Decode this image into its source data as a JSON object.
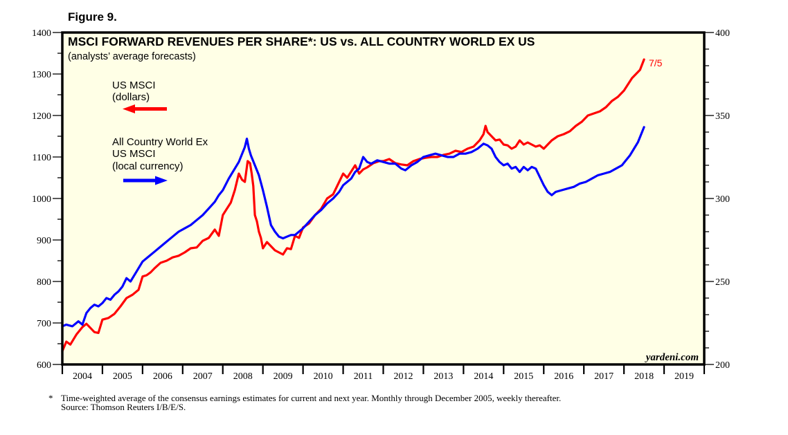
{
  "figure_label": "Figure 9.",
  "footnote": {
    "marker": "*",
    "text": "Time-weighted average of the consensus earnings estimates for current and next year. Monthly through December 2005, weekly thereafter.",
    "source": "Source: Thomson Reuters I/B/E/S."
  },
  "watermark": "yardeni.com",
  "chart_data": {
    "type": "line",
    "title": "MSCI FORWARD REVENUES PER SHARE*: US vs. ALL COUNTRY WORLD EX US",
    "subtitle": "(analysts’ average forecasts)",
    "xlabel": "",
    "x_tick_labels": [
      "2004",
      "2005",
      "2006",
      "2007",
      "2008",
      "2009",
      "2010",
      "2011",
      "2012",
      "2013",
      "2014",
      "2015",
      "2016",
      "2017",
      "2018",
      "2019"
    ],
    "xlim": [
      2004,
      2020
    ],
    "y_left": {
      "label": "",
      "lim": [
        600,
        1400
      ],
      "ticks": [
        600,
        700,
        800,
        900,
        1000,
        1100,
        1200,
        1300,
        1400
      ]
    },
    "y_right": {
      "label": "",
      "lim": [
        200,
        400
      ],
      "ticks": [
        200,
        250,
        300,
        350,
        400
      ]
    },
    "grid": false,
    "background": "#ffffe6",
    "end_annotation": "7/5",
    "legend": [
      {
        "line1": "US MSCI",
        "line2": "(dollars)",
        "line3": "",
        "arrow": "left",
        "color": "#ff0000"
      },
      {
        "line1": "All Country World Ex",
        "line2": "US MSCI",
        "line3": "(local currency)",
        "arrow": "right",
        "color": "#0000ff"
      }
    ],
    "series": [
      {
        "name": "US MSCI (dollars)",
        "axis": "left",
        "color": "#ff0000",
        "x": [
          2004.0,
          2004.1,
          2004.2,
          2004.35,
          2004.5,
          2004.6,
          2004.7,
          2004.8,
          2004.9,
          2005.0,
          2005.15,
          2005.3,
          2005.45,
          2005.6,
          2005.75,
          2005.9,
          2006.0,
          2006.1,
          2006.2,
          2006.3,
          2006.45,
          2006.6,
          2006.75,
          2006.9,
          2007.05,
          2007.2,
          2007.35,
          2007.5,
          2007.65,
          2007.8,
          2007.9,
          2008.0,
          2008.1,
          2008.2,
          2008.3,
          2008.4,
          2008.48,
          2008.55,
          2008.62,
          2008.68,
          2008.72,
          2008.76,
          2008.8,
          2008.85,
          2008.9,
          2008.95,
          2009.0,
          2009.1,
          2009.2,
          2009.3,
          2009.4,
          2009.5,
          2009.6,
          2009.7,
          2009.8,
          2009.9,
          2010.0,
          2010.15,
          2010.3,
          2010.45,
          2010.6,
          2010.75,
          2010.9,
          2011.0,
          2011.1,
          2011.2,
          2011.3,
          2011.4,
          2011.5,
          2011.6,
          2011.75,
          2011.9,
          2012.0,
          2012.15,
          2012.3,
          2012.45,
          2012.6,
          2012.75,
          2012.9,
          2013.05,
          2013.2,
          2013.35,
          2013.5,
          2013.65,
          2013.8,
          2013.95,
          2014.1,
          2014.25,
          2014.4,
          2014.5,
          2014.55,
          2014.6,
          2014.7,
          2014.8,
          2014.9,
          2015.0,
          2015.1,
          2015.2,
          2015.3,
          2015.4,
          2015.5,
          2015.6,
          2015.7,
          2015.8,
          2015.9,
          2016.0,
          2016.1,
          2016.2,
          2016.35,
          2016.5,
          2016.65,
          2016.8,
          2016.95,
          2017.1,
          2017.25,
          2017.4,
          2017.55,
          2017.7,
          2017.85,
          2018.0,
          2018.1,
          2018.2,
          2018.3,
          2018.4,
          2018.5
        ],
        "values": [
          632,
          655,
          648,
          672,
          690,
          698,
          688,
          678,
          676,
          708,
          712,
          722,
          740,
          760,
          768,
          780,
          812,
          815,
          822,
          832,
          845,
          850,
          858,
          862,
          870,
          880,
          882,
          898,
          905,
          925,
          910,
          960,
          975,
          990,
          1020,
          1060,
          1045,
          1040,
          1090,
          1085,
          1060,
          1030,
          960,
          945,
          920,
          905,
          880,
          895,
          885,
          875,
          870,
          865,
          880,
          878,
          910,
          905,
          930,
          940,
          960,
          975,
          1000,
          1010,
          1040,
          1060,
          1050,
          1065,
          1080,
          1060,
          1070,
          1075,
          1085,
          1090,
          1090,
          1095,
          1085,
          1082,
          1080,
          1090,
          1095,
          1098,
          1100,
          1100,
          1105,
          1108,
          1115,
          1112,
          1120,
          1125,
          1140,
          1155,
          1175,
          1160,
          1150,
          1140,
          1142,
          1130,
          1128,
          1120,
          1125,
          1140,
          1130,
          1135,
          1130,
          1125,
          1128,
          1120,
          1130,
          1140,
          1150,
          1155,
          1162,
          1175,
          1185,
          1200,
          1205,
          1210,
          1220,
          1235,
          1245,
          1260,
          1275,
          1290,
          1300,
          1310,
          1335
        ]
      },
      {
        "name": "All Country World Ex US MSCI (local currency)",
        "axis": "right",
        "color": "#0000ff",
        "x": [
          2004.0,
          2004.1,
          2004.25,
          2004.4,
          2004.5,
          2004.6,
          2004.7,
          2004.8,
          2004.9,
          2005.0,
          2005.1,
          2005.2,
          2005.3,
          2005.4,
          2005.5,
          2005.6,
          2005.7,
          2005.8,
          2005.9,
          2006.0,
          2006.15,
          2006.3,
          2006.45,
          2006.6,
          2006.75,
          2006.9,
          2007.05,
          2007.2,
          2007.35,
          2007.5,
          2007.65,
          2007.8,
          2007.9,
          2008.0,
          2008.15,
          2008.3,
          2008.4,
          2008.5,
          2008.55,
          2008.6,
          2008.65,
          2008.7,
          2008.8,
          2008.9,
          2009.0,
          2009.1,
          2009.2,
          2009.3,
          2009.4,
          2009.5,
          2009.6,
          2009.7,
          2009.8,
          2009.9,
          2010.0,
          2010.15,
          2010.3,
          2010.45,
          2010.6,
          2010.75,
          2010.9,
          2011.0,
          2011.1,
          2011.2,
          2011.3,
          2011.4,
          2011.5,
          2011.6,
          2011.7,
          2011.85,
          2012.0,
          2012.15,
          2012.3,
          2012.45,
          2012.55,
          2012.7,
          2012.85,
          2013.0,
          2013.15,
          2013.3,
          2013.45,
          2013.6,
          2013.75,
          2013.9,
          2014.05,
          2014.2,
          2014.35,
          2014.5,
          2014.6,
          2014.7,
          2014.8,
          2014.9,
          2015.0,
          2015.1,
          2015.2,
          2015.3,
          2015.4,
          2015.5,
          2015.6,
          2015.7,
          2015.8,
          2015.9,
          2016.0,
          2016.1,
          2016.2,
          2016.3,
          2016.45,
          2016.6,
          2016.75,
          2016.9,
          2017.05,
          2017.2,
          2017.35,
          2017.5,
          2017.65,
          2017.8,
          2017.95,
          2018.05,
          2018.15,
          2018.25,
          2018.35,
          2018.5
        ],
        "values": [
          223,
          224,
          223,
          226,
          224,
          231,
          234,
          236,
          235,
          237,
          240,
          239,
          242,
          244,
          247,
          252,
          250,
          254,
          258,
          262,
          265,
          268,
          271,
          274,
          277,
          280,
          282,
          284,
          287,
          290,
          294,
          298,
          302,
          305,
          312,
          318,
          322,
          328,
          331,
          336,
          330,
          326,
          320,
          314,
          305,
          295,
          284,
          280,
          277,
          276,
          277,
          278,
          278,
          280,
          282,
          286,
          290,
          293,
          297,
          300,
          304,
          308,
          310,
          312,
          316,
          318,
          325,
          322,
          321,
          323,
          322,
          321,
          321,
          318,
          317,
          320,
          322,
          325,
          326,
          327,
          326,
          325,
          325,
          327,
          327,
          328,
          330,
          333,
          332,
          330,
          325,
          322,
          320,
          321,
          318,
          319,
          316,
          319,
          317,
          319,
          318,
          313,
          308,
          304,
          302,
          304,
          305,
          306,
          307,
          309,
          310,
          312,
          314,
          315,
          316,
          318,
          320,
          323,
          326,
          330,
          334,
          343
        ]
      }
    ]
  }
}
